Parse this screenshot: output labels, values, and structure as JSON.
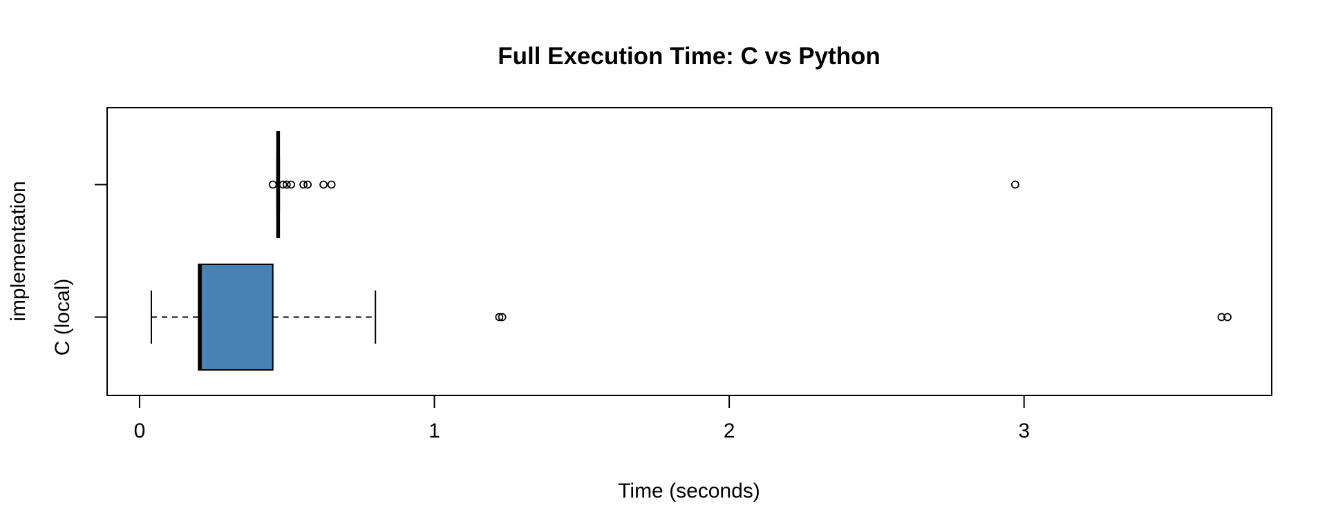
{
  "figure": {
    "background": "#ffffff",
    "foreground": "#000000"
  },
  "chart_data": {
    "type": "boxplot",
    "orientation": "horizontal",
    "title": "Full Execution Time: C vs Python",
    "xlabel": "Time (seconds)",
    "ylabel": "implementation",
    "x_ticks": [
      0,
      1,
      2,
      3
    ],
    "xlim": [
      -0.11,
      3.84
    ],
    "grid": false,
    "legend": "none",
    "box_fill": "#4682B4",
    "box_border": "#000000",
    "whisker_style": "dashed",
    "outlier_marker": "open-circle",
    "series": [
      {
        "label": "",
        "whisker_low": 0.466,
        "q1": 0.466,
        "median": 0.47,
        "q3": 0.474,
        "whisker_high": 0.474,
        "outliers": [
          0.452,
          0.487,
          0.499,
          0.514,
          0.556,
          0.57,
          0.624,
          0.651,
          2.97
        ]
      },
      {
        "label": "C (local)",
        "whisker_low": 0.04,
        "q1": 0.2,
        "median": 0.205,
        "q3": 0.452,
        "whisker_high": 0.8,
        "outliers": [
          1.22,
          1.23,
          3.67,
          3.69
        ]
      }
    ]
  }
}
